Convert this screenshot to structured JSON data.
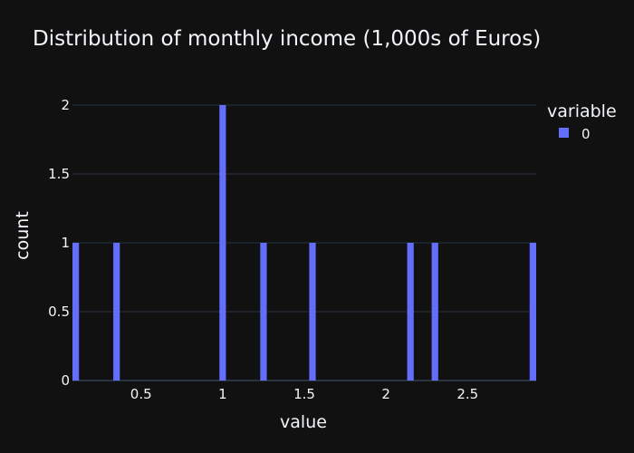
{
  "chart_data": {
    "type": "bar",
    "title": "Distribution of monthly income (1,000s of Euros)",
    "xlabel": "value",
    "ylabel": "count",
    "xlim": [
      0.08,
      2.92
    ],
    "ylim": [
      0,
      2
    ],
    "x_ticks": [
      {
        "value": 0.5,
        "label": "0.5"
      },
      {
        "value": 1,
        "label": "1"
      },
      {
        "value": 1.5,
        "label": "1.5"
      },
      {
        "value": 2,
        "label": "2"
      },
      {
        "value": 2.5,
        "label": "2.5"
      }
    ],
    "y_ticks": [
      {
        "value": 0,
        "label": "0"
      },
      {
        "value": 0.5,
        "label": "0.5"
      },
      {
        "value": 1,
        "label": "1"
      },
      {
        "value": 1.5,
        "label": "1.5"
      },
      {
        "value": 2,
        "label": "2"
      }
    ],
    "bin_width": 0.05,
    "series": [
      {
        "name": "0",
        "color": "#636efa",
        "bins": [
          {
            "x": 0.1,
            "count": 1
          },
          {
            "x": 0.35,
            "count": 1
          },
          {
            "x": 1.0,
            "count": 2
          },
          {
            "x": 1.25,
            "count": 1
          },
          {
            "x": 1.55,
            "count": 1
          },
          {
            "x": 2.15,
            "count": 1
          },
          {
            "x": 2.3,
            "count": 1
          },
          {
            "x": 2.9,
            "count": 1
          }
        ]
      }
    ],
    "legend": {
      "title": "variable",
      "placement": "top-right"
    },
    "grid": true,
    "background": "#111111"
  }
}
